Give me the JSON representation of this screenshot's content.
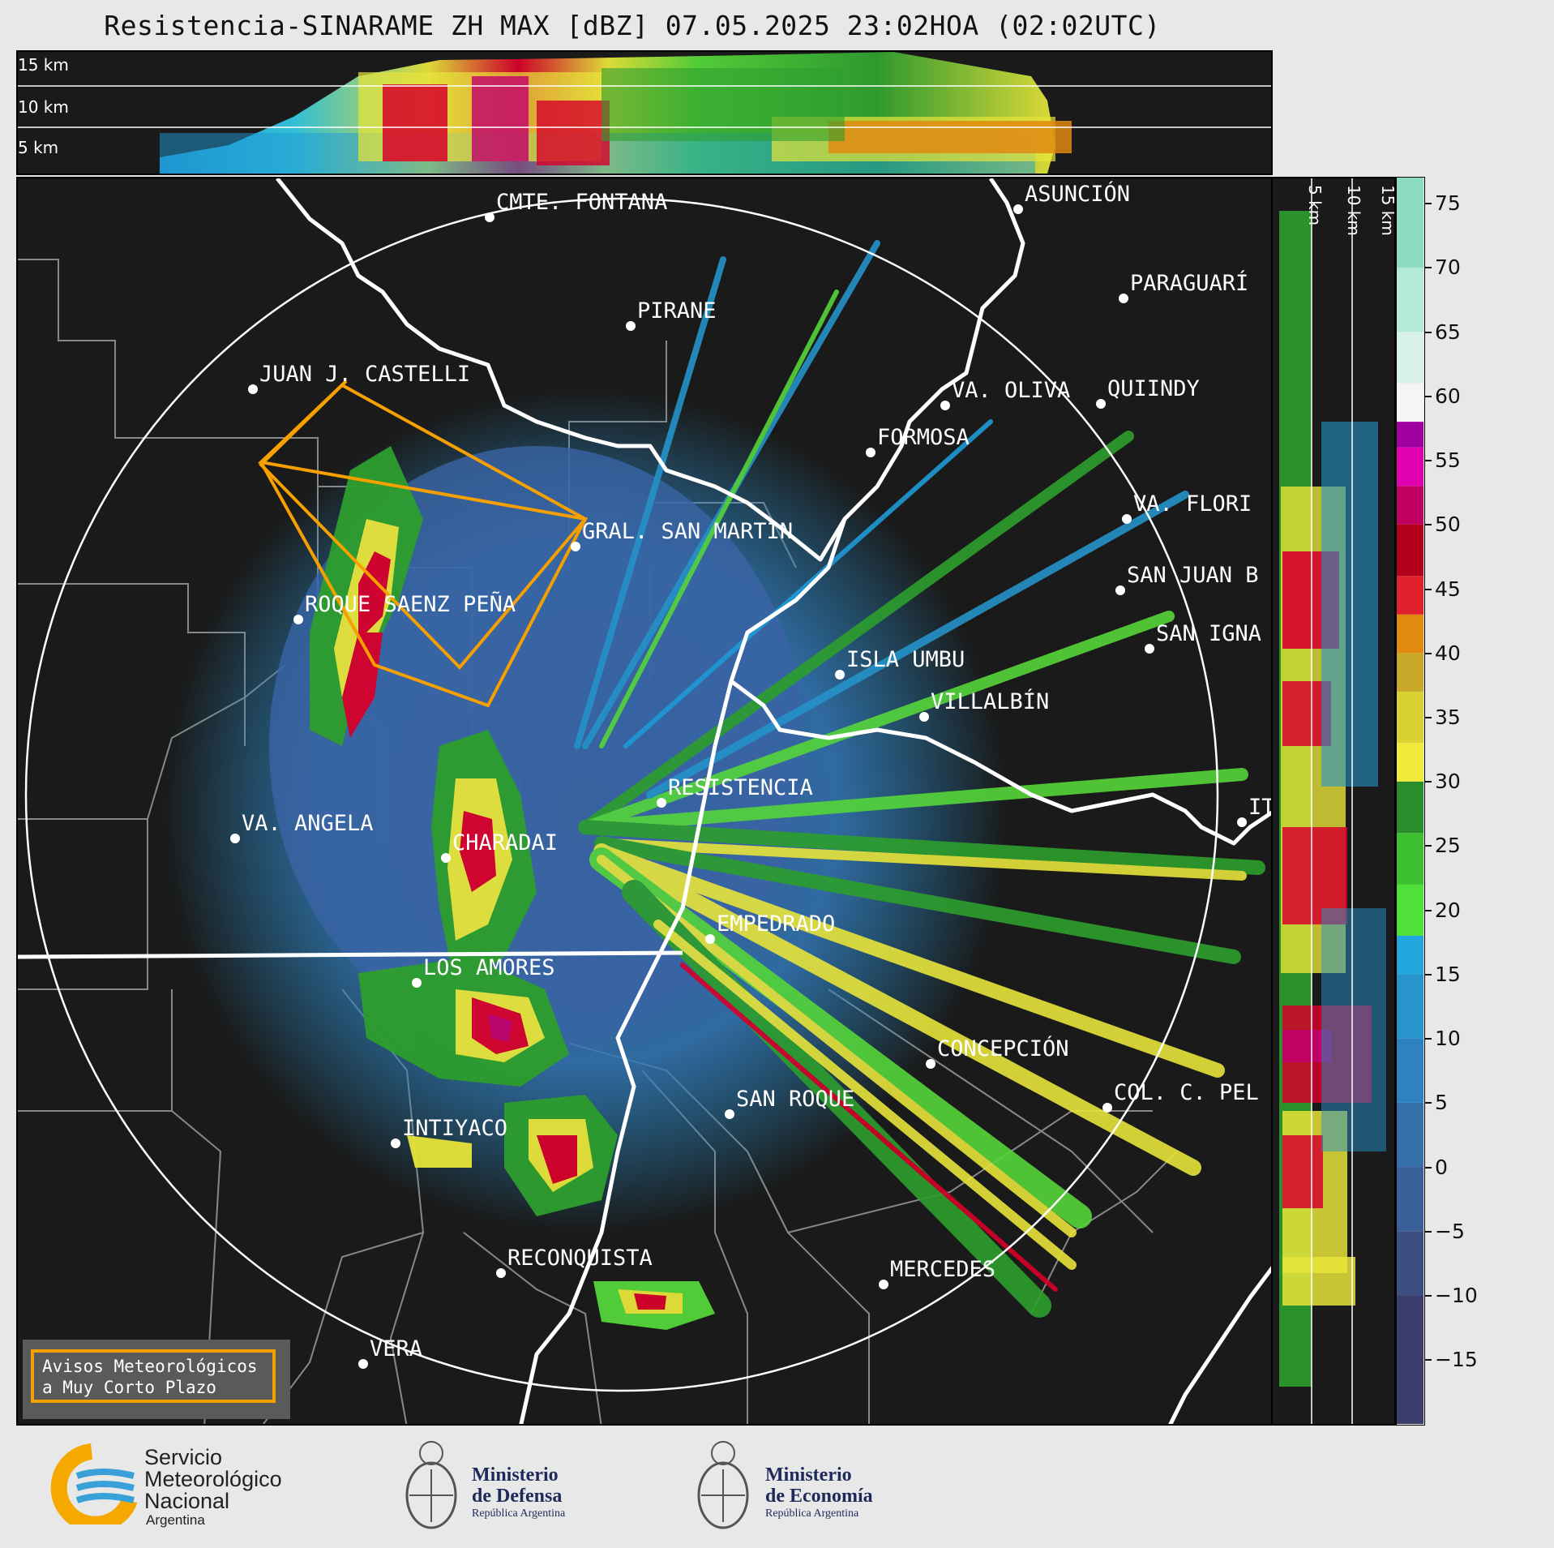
{
  "title": "Resistencia-SINARAME ZH MAX [dBZ] 07.05.2025 23:02HOA (02:02UTC)",
  "top_panel": {
    "altitude_labels": [
      "15 km",
      "10 km",
      "5 km"
    ]
  },
  "right_panel": {
    "altitude_labels": [
      "5 km",
      "10 km",
      "15 km"
    ]
  },
  "colorbar": {
    "ticks": [
      "75",
      "70",
      "65",
      "60",
      "55",
      "50",
      "45",
      "40",
      "35",
      "30",
      "25",
      "20",
      "15",
      "10",
      "5",
      "0",
      "−5",
      "−10",
      "−15"
    ],
    "range": [
      -20,
      77
    ]
  },
  "map": {
    "cities": [
      {
        "name": "CMTE. FONTANA"
      },
      {
        "name": "ASUNCIÓN"
      },
      {
        "name": "PIRANE"
      },
      {
        "name": "PARAGUARÍ"
      },
      {
        "name": "JUAN J. CASTELLI"
      },
      {
        "name": "VA. OLIVA"
      },
      {
        "name": "QUIINDY"
      },
      {
        "name": "FORMOSA"
      },
      {
        "name": "GRAL. SAN MARTIN"
      },
      {
        "name": "VA. FLORI"
      },
      {
        "name": "SAN JUAN B"
      },
      {
        "name": "ROQUE SAENZ PEÑA"
      },
      {
        "name": "SAN IGNA"
      },
      {
        "name": "ISLA UMBU"
      },
      {
        "name": "VILLALBÍN"
      },
      {
        "name": "RESISTENCIA"
      },
      {
        "name": "VA. ANGELA"
      },
      {
        "name": "CHARADAI"
      },
      {
        "name": "IT"
      },
      {
        "name": "EMPEDRADO"
      },
      {
        "name": "LOS AMORES"
      },
      {
        "name": "CONCEPCIÓN"
      },
      {
        "name": "SAN ROQUE"
      },
      {
        "name": "COL. C. PEL"
      },
      {
        "name": "INTIYACO"
      },
      {
        "name": "RECONQUISTA"
      },
      {
        "name": "MERCEDES"
      },
      {
        "name": "VERA"
      }
    ]
  },
  "aviso": {
    "line1": "Avisos Meteorológicos",
    "line2": "a Muy Corto Plazo",
    "color": "#f5a000"
  },
  "logos": {
    "smn_line1": "Servicio",
    "smn_line2": "Meteorológico",
    "smn_line3": "Nacional",
    "smn_line4": "Argentina",
    "defensa_line1": "Ministerio",
    "defensa_line2": "de Defensa",
    "defensa_line3": "República Argentina",
    "economia_line1": "Ministerio",
    "economia_line2": "de Economía",
    "economia_line3": "República Argentina"
  }
}
